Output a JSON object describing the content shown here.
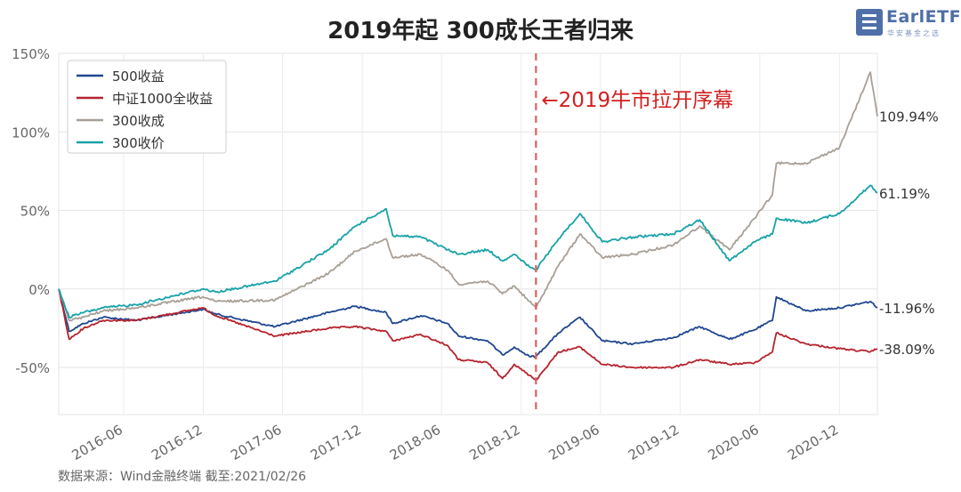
{
  "header": {
    "title": "2019年起 300成长王者归来"
  },
  "logo": {
    "text": "EarlETF",
    "tagline": "华安基金之选"
  },
  "footer": {
    "source": "数据来源：Wind金融终端 截至:2021/02/26"
  },
  "colors": {
    "s500": "#1f4690",
    "s1000": "#b5232e",
    "sGrowth": "#a89f96",
    "sValue": "#18a2a8",
    "marker": "#e06060"
  },
  "chart_data": {
    "type": "line",
    "title": "2019年起 300成长王者归来",
    "xlabel": "",
    "ylabel": "",
    "x_range": [
      "2016-01-04",
      "2021-02-26"
    ],
    "ylim": [
      -80,
      150
    ],
    "y_ticks": [
      150,
      100,
      50,
      0,
      -50
    ],
    "y_tick_labels": [
      "150%",
      "100%",
      "50%",
      "0%",
      "-50%"
    ],
    "x_ticks": [
      "2016-06",
      "2016-12",
      "2017-06",
      "2017-12",
      "2018-06",
      "2018-12",
      "2019-06",
      "2019-12",
      "2020-06",
      "2020-12"
    ],
    "grid": true,
    "legend": "top-left",
    "annotation": {
      "date": "2019-01-04",
      "text": "←2019牛市拉开序幕"
    },
    "series": [
      {
        "name": "500收益",
        "color": "#1f4690",
        "end_label": "-11.96%",
        "points": [
          [
            "2016-01-04",
            0
          ],
          [
            "2016-01-28",
            -27
          ],
          [
            "2016-03-01",
            -22
          ],
          [
            "2016-04-15",
            -18
          ],
          [
            "2016-06-30",
            -20
          ],
          [
            "2016-11-30",
            -13
          ],
          [
            "2016-12-30",
            -16
          ],
          [
            "2017-05-15",
            -24
          ],
          [
            "2017-09-15",
            -15
          ],
          [
            "2017-11-15",
            -11
          ],
          [
            "2018-01-25",
            -15
          ],
          [
            "2018-02-09",
            -22
          ],
          [
            "2018-04-15",
            -17
          ],
          [
            "2018-06-15",
            -22
          ],
          [
            "2018-07-10",
            -30
          ],
          [
            "2018-09-15",
            -33
          ],
          [
            "2018-10-19",
            -42
          ],
          [
            "2018-11-15",
            -37
          ],
          [
            "2018-12-20",
            -43
          ],
          [
            "2019-01-04",
            -43
          ],
          [
            "2019-02-25",
            -28
          ],
          [
            "2019-04-15",
            -18
          ],
          [
            "2019-06-05",
            -33
          ],
          [
            "2019-08-15",
            -35
          ],
          [
            "2019-11-15",
            -31
          ],
          [
            "2020-01-15",
            -24
          ],
          [
            "2020-03-23",
            -32
          ],
          [
            "2020-05-20",
            -26
          ],
          [
            "2020-06-30",
            -20
          ],
          [
            "2020-07-09",
            -5
          ],
          [
            "2020-09-15",
            -14
          ],
          [
            "2020-12-01",
            -12
          ],
          [
            "2021-02-10",
            -8
          ],
          [
            "2021-02-26",
            -11.96
          ]
        ]
      },
      {
        "name": "中证1000全收益",
        "color": "#b5232e",
        "end_label": "-38.09%",
        "points": [
          [
            "2016-01-04",
            0
          ],
          [
            "2016-01-28",
            -32
          ],
          [
            "2016-03-01",
            -25
          ],
          [
            "2016-04-15",
            -20
          ],
          [
            "2016-06-30",
            -20
          ],
          [
            "2016-11-30",
            -12
          ],
          [
            "2016-12-30",
            -17
          ],
          [
            "2017-05-15",
            -30
          ],
          [
            "2017-09-15",
            -25
          ],
          [
            "2017-11-15",
            -24
          ],
          [
            "2018-01-25",
            -27
          ],
          [
            "2018-02-09",
            -33
          ],
          [
            "2018-04-15",
            -29
          ],
          [
            "2018-06-15",
            -36
          ],
          [
            "2018-07-10",
            -45
          ],
          [
            "2018-09-15",
            -47
          ],
          [
            "2018-10-19",
            -57
          ],
          [
            "2018-11-15",
            -48
          ],
          [
            "2018-12-20",
            -55
          ],
          [
            "2019-01-04",
            -58
          ],
          [
            "2019-02-25",
            -40
          ],
          [
            "2019-04-15",
            -37
          ],
          [
            "2019-06-05",
            -48
          ],
          [
            "2019-08-15",
            -50
          ],
          [
            "2019-11-15",
            -50
          ],
          [
            "2020-01-15",
            -45
          ],
          [
            "2020-03-23",
            -48
          ],
          [
            "2020-05-20",
            -47
          ],
          [
            "2020-06-30",
            -40
          ],
          [
            "2020-07-09",
            -28
          ],
          [
            "2020-09-15",
            -35
          ],
          [
            "2020-12-01",
            -38
          ],
          [
            "2021-02-10",
            -40
          ],
          [
            "2021-02-26",
            -38.09
          ]
        ]
      },
      {
        "name": "300收成",
        "color": "#a89f96",
        "end_label": "109.94%",
        "points": [
          [
            "2016-01-04",
            0
          ],
          [
            "2016-01-28",
            -20
          ],
          [
            "2016-03-01",
            -18
          ],
          [
            "2016-04-15",
            -14
          ],
          [
            "2016-06-30",
            -12
          ],
          [
            "2016-11-30",
            -5
          ],
          [
            "2016-12-30",
            -8
          ],
          [
            "2017-05-15",
            -7
          ],
          [
            "2017-09-15",
            10
          ],
          [
            "2017-11-15",
            24
          ],
          [
            "2018-01-25",
            32
          ],
          [
            "2018-02-09",
            20
          ],
          [
            "2018-04-15",
            22
          ],
          [
            "2018-06-15",
            12
          ],
          [
            "2018-07-10",
            3
          ],
          [
            "2018-09-15",
            5
          ],
          [
            "2018-10-19",
            -3
          ],
          [
            "2018-11-15",
            2
          ],
          [
            "2018-12-20",
            -8
          ],
          [
            "2019-01-04",
            -12
          ],
          [
            "2019-02-25",
            15
          ],
          [
            "2019-04-15",
            35
          ],
          [
            "2019-06-05",
            20
          ],
          [
            "2019-08-15",
            22
          ],
          [
            "2019-11-15",
            28
          ],
          [
            "2020-01-15",
            40
          ],
          [
            "2020-03-23",
            25
          ],
          [
            "2020-05-20",
            45
          ],
          [
            "2020-06-30",
            60
          ],
          [
            "2020-07-09",
            80
          ],
          [
            "2020-09-15",
            80
          ],
          [
            "2020-12-01",
            90
          ],
          [
            "2021-02-10",
            138
          ],
          [
            "2021-02-26",
            109.94
          ]
        ]
      },
      {
        "name": "300收价",
        "color": "#18a2a8",
        "end_label": "61.19%",
        "points": [
          [
            "2016-01-04",
            0
          ],
          [
            "2016-01-28",
            -18
          ],
          [
            "2016-03-01",
            -15
          ],
          [
            "2016-04-15",
            -12
          ],
          [
            "2016-06-30",
            -10
          ],
          [
            "2016-11-30",
            0
          ],
          [
            "2016-12-30",
            -2
          ],
          [
            "2017-05-15",
            5
          ],
          [
            "2017-09-15",
            25
          ],
          [
            "2017-11-15",
            40
          ],
          [
            "2018-01-25",
            51
          ],
          [
            "2018-02-09",
            34
          ],
          [
            "2018-04-15",
            33
          ],
          [
            "2018-06-15",
            25
          ],
          [
            "2018-07-10",
            22
          ],
          [
            "2018-09-15",
            25
          ],
          [
            "2018-10-19",
            18
          ],
          [
            "2018-11-15",
            22
          ],
          [
            "2018-12-20",
            14
          ],
          [
            "2019-01-04",
            12
          ],
          [
            "2019-02-25",
            32
          ],
          [
            "2019-04-15",
            48
          ],
          [
            "2019-06-05",
            30
          ],
          [
            "2019-08-15",
            33
          ],
          [
            "2019-11-15",
            35
          ],
          [
            "2020-01-15",
            44
          ],
          [
            "2020-03-23",
            18
          ],
          [
            "2020-05-20",
            30
          ],
          [
            "2020-06-30",
            35
          ],
          [
            "2020-07-09",
            45
          ],
          [
            "2020-09-15",
            42
          ],
          [
            "2020-12-01",
            48
          ],
          [
            "2021-02-10",
            66
          ],
          [
            "2021-02-26",
            61.19
          ]
        ]
      }
    ]
  }
}
